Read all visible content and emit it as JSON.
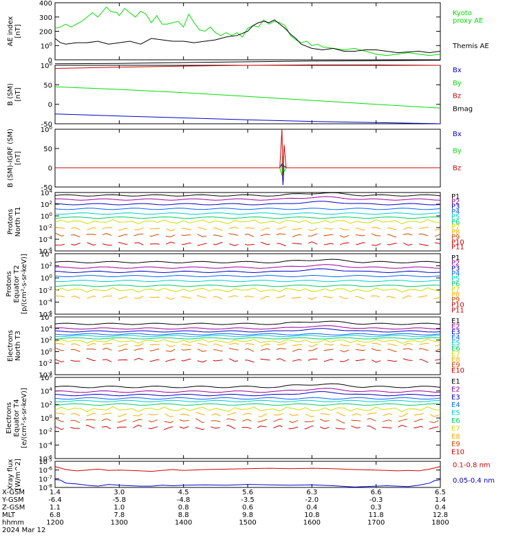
{
  "chart_data": [
    {
      "type": "line",
      "ylabel": [
        "AE index",
        "[nT]"
      ],
      "ylim": [
        0,
        400
      ],
      "yticks": [
        "0",
        "100",
        "200",
        "300",
        "400"
      ],
      "series": [
        {
          "name": "Kyoto proxy AE",
          "legend": [
            "Kyoto",
            "proxy AE"
          ],
          "color": "#00dd00",
          "x": [
            1200,
            1205,
            1210,
            1215,
            1225,
            1235,
            1240,
            1248,
            1252,
            1258,
            1300,
            1305,
            1310,
            1315,
            1320,
            1325,
            1330,
            1335,
            1340,
            1345,
            1350,
            1355,
            1400,
            1405,
            1410,
            1415,
            1420,
            1425,
            1430,
            1435,
            1440,
            1445,
            1450,
            1455,
            1500,
            1505,
            1510,
            1515,
            1520,
            1525,
            1530,
            1535,
            1540,
            1545,
            1550,
            1555,
            1600,
            1605,
            1610,
            1620,
            1630,
            1640,
            1650,
            1700,
            1710,
            1720,
            1730,
            1740,
            1750,
            1800
          ],
          "values": [
            220,
            230,
            250,
            230,
            270,
            330,
            300,
            370,
            340,
            330,
            310,
            360,
            330,
            300,
            340,
            320,
            260,
            310,
            250,
            250,
            260,
            270,
            230,
            320,
            260,
            210,
            200,
            230,
            190,
            170,
            190,
            170,
            190,
            160,
            220,
            240,
            230,
            280,
            250,
            270,
            260,
            240,
            170,
            140,
            120,
            130,
            100,
            110,
            90,
            80,
            70,
            80,
            60,
            40,
            30,
            40,
            50,
            40,
            30,
            40
          ]
        },
        {
          "name": "Themis AE",
          "legend": [
            "Themis AE"
          ],
          "color": "#000000",
          "x": [
            1200,
            1205,
            1210,
            1220,
            1230,
            1240,
            1250,
            1300,
            1310,
            1320,
            1330,
            1340,
            1350,
            1400,
            1410,
            1420,
            1430,
            1440,
            1450,
            1500,
            1505,
            1510,
            1515,
            1520,
            1525,
            1530,
            1535,
            1540,
            1545,
            1550,
            1600,
            1610,
            1620,
            1630,
            1640,
            1650,
            1700,
            1710,
            1720,
            1730,
            1740,
            1750,
            1800
          ],
          "values": [
            150,
            120,
            110,
            120,
            120,
            130,
            110,
            120,
            130,
            110,
            150,
            140,
            130,
            130,
            120,
            130,
            140,
            160,
            170,
            200,
            240,
            260,
            270,
            260,
            280,
            250,
            220,
            180,
            150,
            110,
            80,
            70,
            80,
            60,
            60,
            70,
            70,
            60,
            50,
            55,
            60,
            50,
            60
          ]
        }
      ]
    },
    {
      "type": "line",
      "ylabel": [
        "B (SM)",
        "[nT]"
      ],
      "ylim": [
        -50,
        100
      ],
      "yticks": [
        "-50",
        "0",
        "50",
        "100"
      ],
      "series": [
        {
          "name": "Bx",
          "color": "#0000cc",
          "x": [
            1200,
            1300,
            1400,
            1500,
            1600,
            1700,
            1800
          ],
          "values": [
            -25,
            -30,
            -35,
            -40,
            -44,
            -47,
            -50
          ]
        },
        {
          "name": "By",
          "color": "#00dd00",
          "x": [
            1200,
            1300,
            1400,
            1500,
            1600,
            1700,
            1800
          ],
          "values": [
            45,
            38,
            30,
            20,
            10,
            0,
            -10
          ]
        },
        {
          "name": "Bz",
          "color": "#cc0000",
          "x": [
            1200,
            1300,
            1400,
            1500,
            1600,
            1700,
            1800
          ],
          "values": [
            92,
            95,
            98,
            100,
            101,
            101,
            100
          ]
        },
        {
          "name": "Bmag",
          "color": "#000000",
          "x": [
            1200,
            1300,
            1400,
            1500,
            1600,
            1700,
            1800
          ],
          "values": [
            104,
            105,
            107,
            109,
            111,
            112,
            113
          ]
        }
      ]
    },
    {
      "type": "line",
      "ylabel": [
        "B (SM)-IGRF (SM)",
        "[nT]"
      ],
      "ylim": [
        -50,
        100
      ],
      "yticks": [
        "-50",
        "0",
        "50",
        "100"
      ],
      "series": [
        {
          "name": "Bx",
          "color": "#0000cc",
          "x": [
            1200,
            1530,
            1532,
            1533,
            1534,
            1536,
            1800
          ],
          "values": [
            0,
            0,
            10,
            -45,
            5,
            0,
            0
          ]
        },
        {
          "name": "By",
          "color": "#00dd00",
          "x": [
            1200,
            1530,
            1532,
            1533,
            1534,
            1536,
            1800
          ],
          "values": [
            0,
            0,
            -20,
            30,
            -10,
            0,
            0
          ]
        },
        {
          "name": "Bz",
          "color": "#cc0000",
          "x": [
            1200,
            1530,
            1532,
            1533,
            1534,
            1536,
            1800
          ],
          "values": [
            0,
            0,
            100,
            -20,
            60,
            0,
            0
          ]
        }
      ]
    },
    {
      "type": "line",
      "log": true,
      "ylabel": [
        "Protons",
        "North T1"
      ],
      "ylim": [
        -6,
        4
      ],
      "yticks": [
        "10-6",
        "10-4",
        "10-2",
        "100",
        "102",
        "104"
      ],
      "series_labels": [
        "P1",
        "P2",
        "P3",
        "P4",
        "P5",
        "P6",
        "P7",
        "P8",
        "P9",
        "P10",
        "P11"
      ],
      "series_colors": [
        "#000000",
        "#990099",
        "#0000cc",
        "#0066ff",
        "#00cccc",
        "#00cc66",
        "#ccdd00",
        "#ffaa00",
        "#cc4400",
        "#cc0000",
        "#cc0000"
      ],
      "series_levels": [
        3.5,
        2.8,
        2.0,
        1.2,
        0.4,
        -0.3,
        -1.0,
        -2.2,
        -3.3,
        null,
        -4.8
      ]
    },
    {
      "type": "line",
      "log": true,
      "ylabel": [
        "Protons",
        "Equator T2",
        "[p/(cm²-s-sr-keV)]"
      ],
      "ylim": [
        -6,
        4
      ],
      "yticks": [
        "10-6",
        "10-4",
        "10-2",
        "100",
        "102",
        "104"
      ],
      "series_labels": [
        "P1",
        "P2",
        "P3",
        "P4",
        "P5",
        "P6",
        "P7",
        "P8",
        "P9",
        "P10",
        "P11"
      ],
      "series_colors": [
        "#000000",
        "#990099",
        "#0000cc",
        "#0066ff",
        "#00cccc",
        "#00cc66",
        "#ccdd00",
        "#ffaa00",
        "#cc4400",
        "#cc0000",
        "#cc0000"
      ],
      "series_levels": [
        2.6,
        1.7,
        1.0,
        0.3,
        -0.5,
        -1.3,
        -2.0,
        -3.2,
        null,
        null,
        null
      ]
    },
    {
      "type": "line",
      "log": true,
      "ylabel": [
        "Electrons",
        "North T3"
      ],
      "ylim": [
        -4,
        6
      ],
      "yticks": [
        "10-4",
        "10-2",
        "100",
        "102",
        "104",
        "106"
      ],
      "series_labels": [
        "E1",
        "E2",
        "E3",
        "E4",
        "E5",
        "E6",
        "E7",
        "E8",
        "E9",
        "E10"
      ],
      "series_colors": [
        "#000000",
        "#990099",
        "#0000cc",
        "#0066ff",
        "#00cccc",
        "#00cc66",
        "#ccdd00",
        "#ffaa00",
        "#cc4400",
        "#cc0000"
      ],
      "series_levels": [
        4.8,
        4.0,
        3.5,
        3.0,
        2.7,
        2.3,
        1.8,
        1.2,
        0.3,
        -1.5
      ]
    },
    {
      "type": "line",
      "log": true,
      "ylabel": [
        "Electrons",
        "Equator T4",
        "[e/(cm²-s-sr-keV)]"
      ],
      "ylim": [
        -6,
        6
      ],
      "yticks": [
        "10-6",
        "10-4",
        "10-2",
        "100",
        "102",
        "104",
        "106"
      ],
      "series_labels": [
        "E1",
        "E2",
        "E3",
        "E4",
        "E5",
        "E6",
        "E7",
        "E8",
        "E9",
        "E10"
      ],
      "series_colors": [
        "#000000",
        "#990099",
        "#0000cc",
        "#0066ff",
        "#00cccc",
        "#00cc66",
        "#ccdd00",
        "#ffaa00",
        "#cc4400",
        "#cc0000"
      ],
      "series_levels": [
        4.6,
        3.9,
        3.4,
        2.9,
        2.5,
        2.0,
        1.3,
        0.5,
        -0.4,
        -1.4
      ]
    },
    {
      "type": "line",
      "log": true,
      "ylabel": [
        "Xray flux",
        "[W/m^2]"
      ],
      "ylim": [
        -8,
        -5
      ],
      "yticks": [
        "10-8",
        "10-7",
        "10-6",
        "10-5"
      ],
      "series": [
        {
          "name": "0.1-0.8 nm",
          "color": "#cc0000",
          "x": [
            1200,
            1210,
            1220,
            1230,
            1240,
            1250,
            1300,
            1310,
            1320,
            1330,
            1340,
            1350,
            1400,
            1420,
            1440,
            1500,
            1520,
            1540,
            1600,
            1620,
            1640,
            1700,
            1710,
            1720,
            1730,
            1740,
            1750,
            1755,
            1800
          ],
          "values": [
            -5.6,
            -5.95,
            -6.1,
            -6.0,
            -5.9,
            -6.05,
            -6.0,
            -6.05,
            -6.1,
            -6.15,
            -6.05,
            -5.95,
            -6.05,
            -5.95,
            -5.9,
            -5.85,
            -5.8,
            -5.85,
            -5.8,
            -5.85,
            -5.95,
            -6.0,
            -6.05,
            -6.1,
            -6.05,
            -6.1,
            -5.9,
            -5.75,
            -5.6
          ]
        },
        {
          "name": "0.05-0.4 nm",
          "color": "#0000cc",
          "x": [
            1200,
            1205,
            1210,
            1220,
            1230,
            1240,
            1250,
            1300,
            1310,
            1320,
            1330,
            1340,
            1350,
            1400,
            1420,
            1440,
            1500,
            1520,
            1540,
            1600,
            1620,
            1640,
            1700,
            1710,
            1720,
            1730,
            1740,
            1750,
            1755,
            1800
          ],
          "values": [
            -7.1,
            -7.15,
            -7.5,
            -7.6,
            -7.75,
            -7.85,
            -7.65,
            -7.75,
            -7.8,
            -7.85,
            -7.85,
            -7.75,
            -7.8,
            -7.75,
            -7.7,
            -7.75,
            -7.65,
            -7.7,
            -7.75,
            -7.7,
            -7.8,
            -7.95,
            -7.85,
            -7.8,
            -7.85,
            -7.9,
            -7.75,
            -7.5,
            -7.2,
            -7.1
          ]
        }
      ]
    }
  ],
  "xaxis": {
    "x_range": [
      1200,
      1800
    ],
    "rows": [
      {
        "label": "X-GSM",
        "values": [
          "1.4",
          "3.0",
          "4.5",
          "5.6",
          "6.3",
          "6.6",
          "6.5"
        ]
      },
      {
        "label": "Y-GSM",
        "values": [
          "-6.4",
          "-5.8",
          "-4.8",
          "-3.5",
          "-2.0",
          "-0.3",
          "1.4"
        ]
      },
      {
        "label": "Z-GSM",
        "values": [
          "1.1",
          "1.0",
          "0.8",
          "0.6",
          "0.4",
          "0.3",
          "0.4"
        ]
      },
      {
        "label": "MLT",
        "values": [
          "6.8",
          "7.8",
          "8.8",
          "9.8",
          "10.8",
          "11.8",
          "12.8"
        ]
      },
      {
        "label": "hhmm",
        "values": [
          "1200",
          "1300",
          "1400",
          "1500",
          "1600",
          "1700",
          "1800"
        ]
      },
      {
        "label": "2024 Mar 12",
        "values": []
      }
    ]
  }
}
